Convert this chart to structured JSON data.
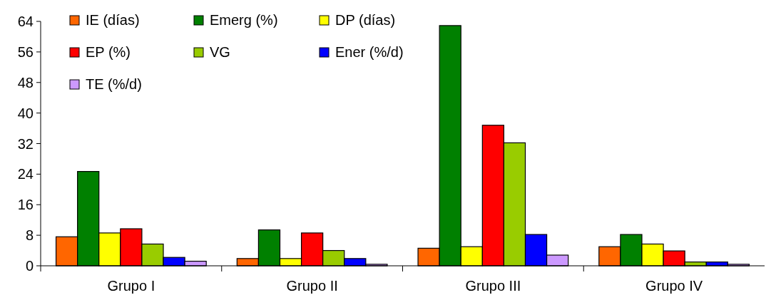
{
  "chart_data": {
    "type": "bar",
    "categories": [
      "Grupo I",
      "Grupo II",
      "Grupo III",
      "Grupo IV"
    ],
    "series": [
      {
        "name": "IE (días)",
        "color": "#ff6600",
        "values": [
          7.6,
          1.9,
          4.6,
          5.0
        ]
      },
      {
        "name": "Emerg (%)",
        "color": "#008000",
        "values": [
          24.7,
          9.4,
          62.9,
          8.2
        ]
      },
      {
        "name": "DP (días)",
        "color": "#ffff00",
        "values": [
          8.6,
          1.9,
          5.0,
          5.7
        ]
      },
      {
        "name": "EP (%)",
        "color": "#ff0000",
        "values": [
          9.7,
          8.6,
          36.8,
          3.9
        ]
      },
      {
        "name": "VG",
        "color": "#99cc00",
        "values": [
          5.7,
          4.0,
          32.2,
          1.0
        ]
      },
      {
        "name": "Ener (%/d)",
        "color": "#0000ff",
        "values": [
          2.2,
          1.9,
          8.2,
          1.0
        ]
      },
      {
        "name": "TE (%/d)",
        "color": "#cc99ff",
        "values": [
          1.2,
          0.4,
          2.8,
          0.4
        ]
      }
    ],
    "ylim": [
      0,
      64
    ],
    "yticks": [
      0,
      8,
      16,
      24,
      32,
      40,
      48,
      56,
      64
    ],
    "legend": "top left"
  }
}
